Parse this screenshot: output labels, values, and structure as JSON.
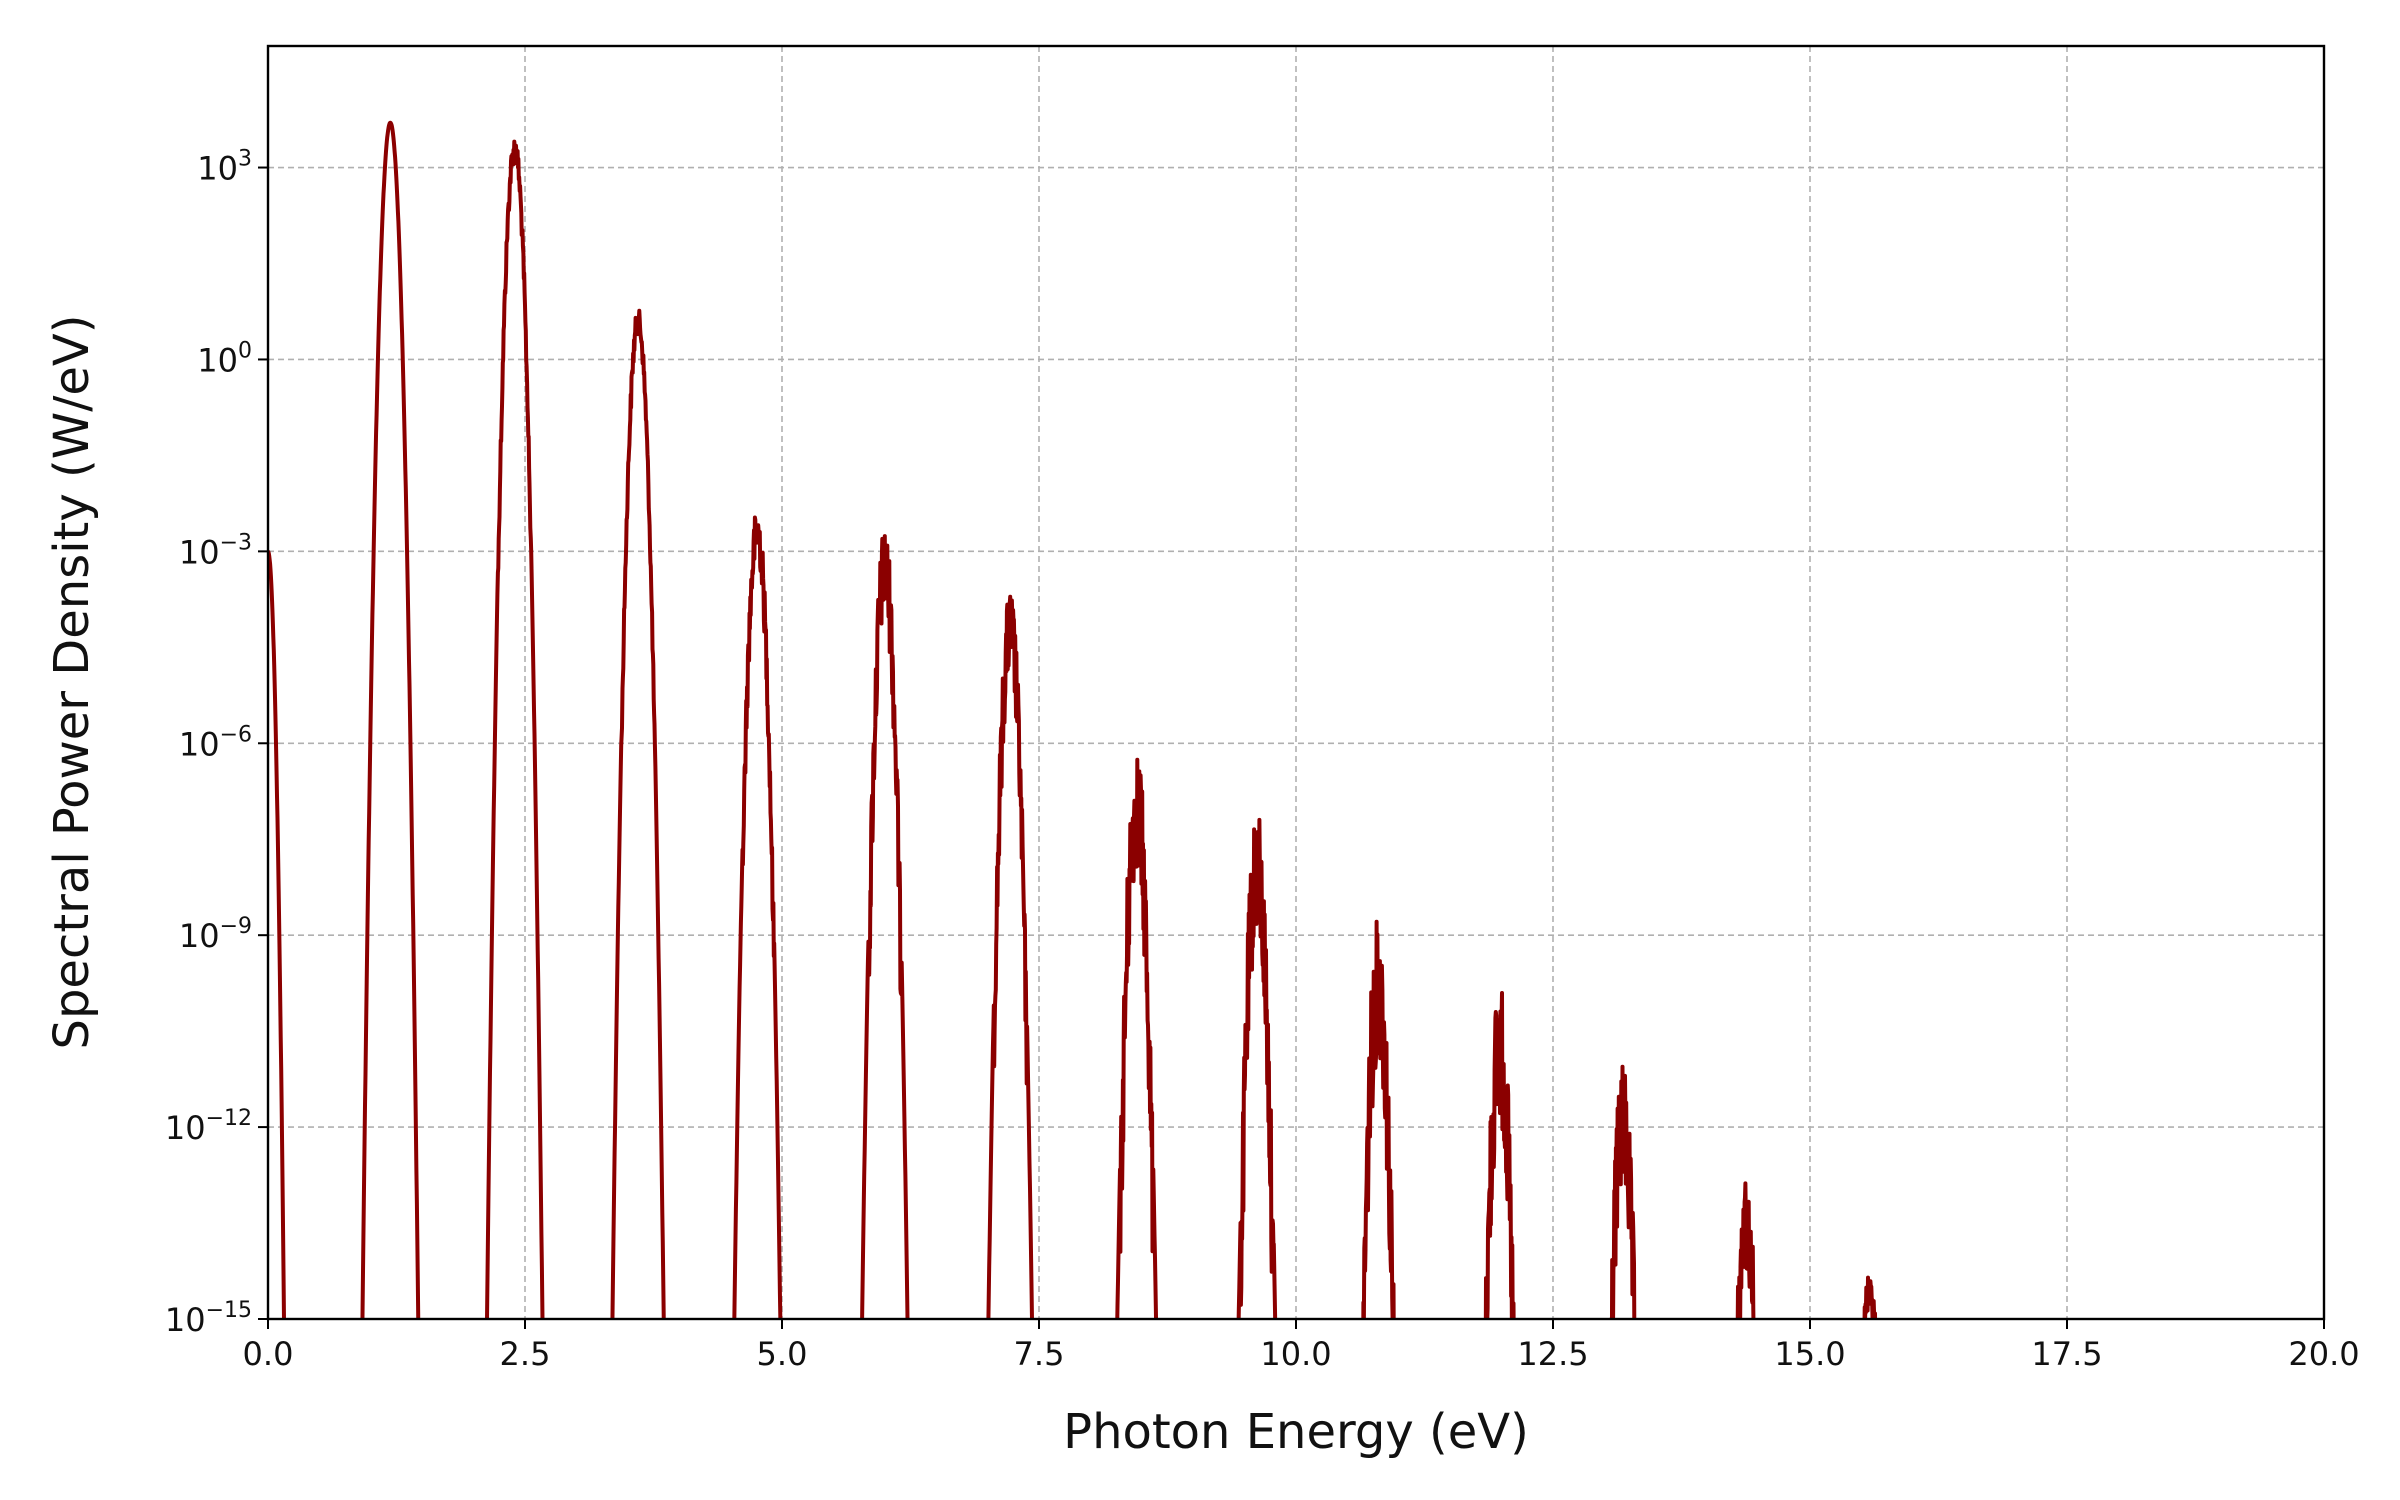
{
  "chart_data": {
    "type": "line",
    "title": "",
    "xlabel": "Photon Energy (eV)",
    "ylabel": "Spectral Power Density (W/eV)",
    "xlim": [
      0,
      20
    ],
    "ylim_log10": [
      -15,
      4.9
    ],
    "yscale": "log",
    "grid": true,
    "legend": "none",
    "line_color": "#8b0000",
    "grid_color": "#b0b0b0",
    "x_ticks": [
      "0.0",
      "2.5",
      "5.0",
      "7.5",
      "10.0",
      "12.5",
      "15.0",
      "17.5",
      "20.0"
    ],
    "x_tick_values": [
      0,
      2.5,
      5,
      7.5,
      10,
      12.5,
      15,
      17.5,
      20
    ],
    "y_ticks": [
      {
        "base": "10",
        "exp": "−15",
        "value": -15
      },
      {
        "base": "10",
        "exp": "−12",
        "value": -12
      },
      {
        "base": "10",
        "exp": "−9",
        "value": -9
      },
      {
        "base": "10",
        "exp": "−6",
        "value": -6
      },
      {
        "base": "10",
        "exp": "−3",
        "value": -3
      },
      {
        "base": "10",
        "exp": "0",
        "value": 0
      },
      {
        "base": "10",
        "exp": "3",
        "value": 3
      }
    ],
    "series": [
      {
        "peaks": [
          {
            "center_eV": 1.19,
            "peak_log10": 3.7,
            "noise": 0.0
          },
          {
            "center_eV": 2.4,
            "peak_log10": 3.5,
            "noise": 0.4
          },
          {
            "center_eV": 3.6,
            "peak_log10": 0.8,
            "noise": 0.4
          },
          {
            "center_eV": 4.76,
            "peak_log10": -2.3,
            "noise": 0.8
          },
          {
            "center_eV": 6.0,
            "peak_log10": -2.6,
            "noise": 1.4
          },
          {
            "center_eV": 7.22,
            "peak_log10": -3.6,
            "noise": 1.3
          },
          {
            "center_eV": 8.45,
            "peak_log10": -6.0,
            "noise": 2.0
          },
          {
            "center_eV": 9.62,
            "peak_log10": -7.0,
            "noise": 2.0
          },
          {
            "center_eV": 10.8,
            "peak_log10": -8.7,
            "noise": 2.2
          },
          {
            "center_eV": 11.98,
            "peak_log10": -9.7,
            "noise": 2.2
          },
          {
            "center_eV": 13.18,
            "peak_log10": -11.0,
            "noise": 2.0
          },
          {
            "center_eV": 14.38,
            "peak_log10": -12.8,
            "noise": 1.5
          },
          {
            "center_eV": 15.58,
            "peak_log10": -14.2,
            "noise": 0.6
          }
        ],
        "dc_component": {
          "x_eV": 0.0,
          "peak_log10": -3.0
        }
      }
    ]
  }
}
